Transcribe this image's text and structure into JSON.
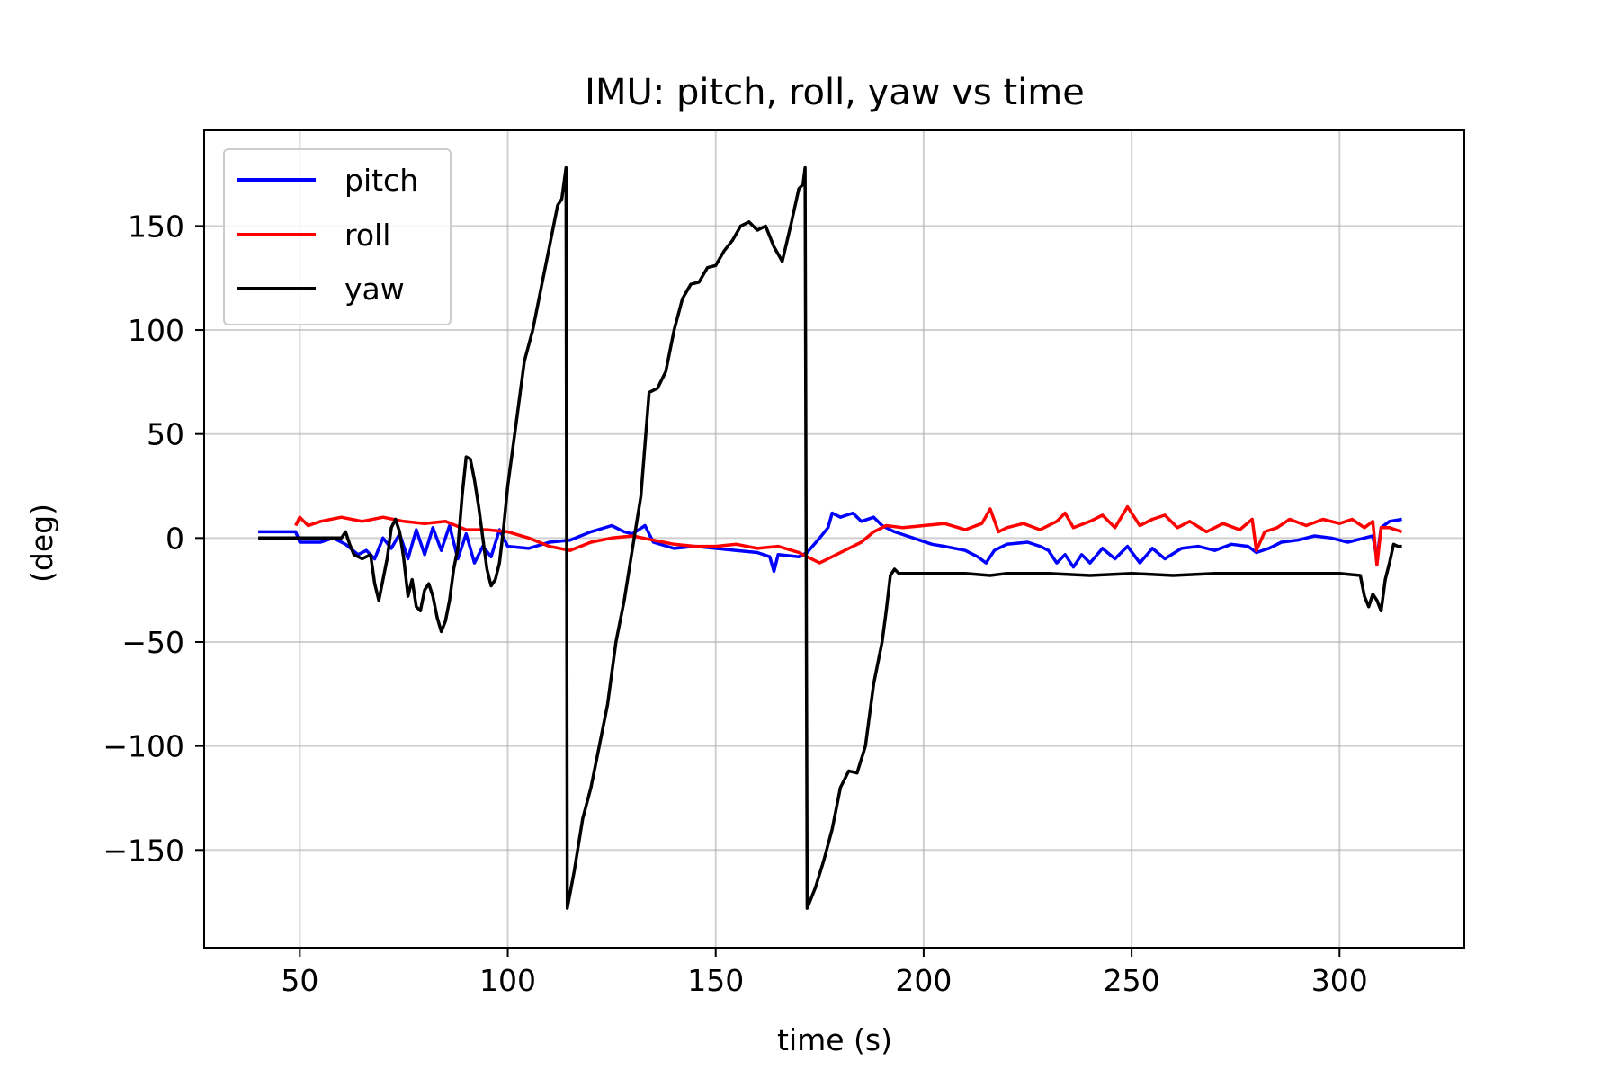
{
  "chart_data": {
    "type": "line",
    "title": "IMU: pitch, roll, yaw vs time",
    "xlabel": "time (s)",
    "ylabel": "(deg)",
    "xlim": [
      27,
      330
    ],
    "ylim": [
      -197,
      196
    ],
    "xticks": [
      50,
      100,
      150,
      200,
      250,
      300
    ],
    "xtick_labels": [
      "50",
      "100",
      "150",
      "200",
      "250",
      "300"
    ],
    "yticks": [
      -150,
      -100,
      -50,
      0,
      50,
      100,
      150
    ],
    "ytick_labels": [
      "−150",
      "−100",
      "−50",
      "0",
      "50",
      "100",
      "150"
    ],
    "grid": true,
    "legend_position": "upper-left",
    "series": [
      {
        "name": "pitch",
        "color": "#0000ff",
        "points": [
          [
            40,
            3
          ],
          [
            49,
            3
          ],
          [
            50,
            -2
          ],
          [
            55,
            -2
          ],
          [
            58,
            0
          ],
          [
            61,
            -3
          ],
          [
            64,
            -8
          ],
          [
            66,
            -6
          ],
          [
            68,
            -10
          ],
          [
            70,
            0
          ],
          [
            72,
            -5
          ],
          [
            74,
            2
          ],
          [
            76,
            -10
          ],
          [
            78,
            4
          ],
          [
            80,
            -8
          ],
          [
            82,
            5
          ],
          [
            84,
            -6
          ],
          [
            86,
            6
          ],
          [
            88,
            -10
          ],
          [
            90,
            2
          ],
          [
            92,
            -12
          ],
          [
            94,
            -4
          ],
          [
            96,
            -9
          ],
          [
            98,
            4
          ],
          [
            100,
            -4
          ],
          [
            105,
            -5
          ],
          [
            110,
            -2
          ],
          [
            115,
            -1
          ],
          [
            120,
            3
          ],
          [
            125,
            6
          ],
          [
            128,
            3
          ],
          [
            130,
            2
          ],
          [
            133,
            6
          ],
          [
            135,
            -2
          ],
          [
            140,
            -5
          ],
          [
            145,
            -4
          ],
          [
            150,
            -5
          ],
          [
            155,
            -6
          ],
          [
            160,
            -7
          ],
          [
            163,
            -9
          ],
          [
            164,
            -16
          ],
          [
            165,
            -8
          ],
          [
            170,
            -9
          ],
          [
            172,
            -7
          ],
          [
            175,
            0
          ],
          [
            177,
            5
          ],
          [
            178,
            12
          ],
          [
            180,
            10
          ],
          [
            183,
            12
          ],
          [
            185,
            8
          ],
          [
            188,
            10
          ],
          [
            190,
            6
          ],
          [
            193,
            3
          ],
          [
            196,
            1
          ],
          [
            199,
            -1
          ],
          [
            202,
            -3
          ],
          [
            205,
            -4
          ],
          [
            210,
            -6
          ],
          [
            213,
            -9
          ],
          [
            215,
            -12
          ],
          [
            217,
            -6
          ],
          [
            220,
            -3
          ],
          [
            225,
            -2
          ],
          [
            228,
            -4
          ],
          [
            230,
            -6
          ],
          [
            232,
            -12
          ],
          [
            234,
            -8
          ],
          [
            236,
            -14
          ],
          [
            238,
            -8
          ],
          [
            240,
            -12
          ],
          [
            243,
            -5
          ],
          [
            246,
            -10
          ],
          [
            249,
            -4
          ],
          [
            252,
            -12
          ],
          [
            255,
            -5
          ],
          [
            258,
            -10
          ],
          [
            262,
            -5
          ],
          [
            266,
            -4
          ],
          [
            270,
            -6
          ],
          [
            274,
            -3
          ],
          [
            278,
            -4
          ],
          [
            280,
            -7
          ],
          [
            283,
            -5
          ],
          [
            286,
            -2
          ],
          [
            290,
            -1
          ],
          [
            294,
            1
          ],
          [
            298,
            0
          ],
          [
            302,
            -2
          ],
          [
            306,
            0
          ],
          [
            308,
            1
          ],
          [
            309,
            -10
          ],
          [
            310,
            5
          ],
          [
            312,
            8
          ],
          [
            315,
            9
          ]
        ]
      },
      {
        "name": "roll",
        "color": "#ff0000",
        "points": [
          [
            49,
            6
          ],
          [
            50,
            10
          ],
          [
            52,
            6
          ],
          [
            55,
            8
          ],
          [
            60,
            10
          ],
          [
            65,
            8
          ],
          [
            70,
            10
          ],
          [
            75,
            8
          ],
          [
            80,
            7
          ],
          [
            85,
            8
          ],
          [
            90,
            4
          ],
          [
            95,
            4
          ],
          [
            100,
            3
          ],
          [
            105,
            0
          ],
          [
            110,
            -4
          ],
          [
            115,
            -6
          ],
          [
            120,
            -2
          ],
          [
            125,
            0
          ],
          [
            130,
            1
          ],
          [
            135,
            -1
          ],
          [
            140,
            -3
          ],
          [
            145,
            -4
          ],
          [
            150,
            -4
          ],
          [
            155,
            -3
          ],
          [
            160,
            -5
          ],
          [
            165,
            -4
          ],
          [
            170,
            -7
          ],
          [
            172,
            -9
          ],
          [
            175,
            -12
          ],
          [
            178,
            -9
          ],
          [
            182,
            -5
          ],
          [
            185,
            -2
          ],
          [
            188,
            3
          ],
          [
            191,
            6
          ],
          [
            195,
            5
          ],
          [
            200,
            6
          ],
          [
            205,
            7
          ],
          [
            210,
            4
          ],
          [
            214,
            7
          ],
          [
            216,
            14
          ],
          [
            218,
            3
          ],
          [
            220,
            5
          ],
          [
            224,
            7
          ],
          [
            228,
            4
          ],
          [
            232,
            8
          ],
          [
            234,
            12
          ],
          [
            236,
            5
          ],
          [
            240,
            8
          ],
          [
            243,
            11
          ],
          [
            246,
            5
          ],
          [
            249,
            15
          ],
          [
            250,
            12
          ],
          [
            252,
            6
          ],
          [
            255,
            9
          ],
          [
            258,
            11
          ],
          [
            261,
            5
          ],
          [
            264,
            8
          ],
          [
            268,
            3
          ],
          [
            272,
            7
          ],
          [
            276,
            4
          ],
          [
            279,
            9
          ],
          [
            280,
            -6
          ],
          [
            282,
            3
          ],
          [
            285,
            5
          ],
          [
            288,
            9
          ],
          [
            292,
            6
          ],
          [
            296,
            9
          ],
          [
            300,
            7
          ],
          [
            303,
            9
          ],
          [
            306,
            5
          ],
          [
            308,
            8
          ],
          [
            309,
            -13
          ],
          [
            310,
            5
          ],
          [
            312,
            5
          ],
          [
            315,
            3
          ]
        ]
      },
      {
        "name": "yaw",
        "color": "#000000",
        "points": [
          [
            40,
            0
          ],
          [
            58,
            0
          ],
          [
            60,
            0
          ],
          [
            61,
            3
          ],
          [
            62,
            -3
          ],
          [
            63,
            -8
          ],
          [
            65,
            -10
          ],
          [
            67,
            -8
          ],
          [
            68,
            -22
          ],
          [
            69,
            -30
          ],
          [
            70,
            -20
          ],
          [
            71,
            -10
          ],
          [
            72,
            5
          ],
          [
            73,
            9
          ],
          [
            74,
            3
          ],
          [
            75,
            -10
          ],
          [
            76,
            -28
          ],
          [
            77,
            -20
          ],
          [
            78,
            -33
          ],
          [
            79,
            -35
          ],
          [
            80,
            -25
          ],
          [
            81,
            -22
          ],
          [
            82,
            -28
          ],
          [
            83,
            -38
          ],
          [
            84,
            -45
          ],
          [
            85,
            -40
          ],
          [
            86,
            -30
          ],
          [
            87,
            -15
          ],
          [
            88,
            -5
          ],
          [
            89,
            20
          ],
          [
            90,
            39
          ],
          [
            91,
            38
          ],
          [
            92,
            28
          ],
          [
            93,
            15
          ],
          [
            94,
            0
          ],
          [
            95,
            -15
          ],
          [
            96,
            -23
          ],
          [
            97,
            -20
          ],
          [
            98,
            -12
          ],
          [
            99,
            5
          ],
          [
            100,
            25
          ],
          [
            102,
            55
          ],
          [
            104,
            85
          ],
          [
            106,
            100
          ],
          [
            108,
            120
          ],
          [
            110,
            140
          ],
          [
            112,
            160
          ],
          [
            113,
            163
          ],
          [
            114,
            178
          ],
          [
            114.3,
            -178
          ],
          [
            116,
            -160
          ],
          [
            118,
            -135
          ],
          [
            120,
            -120
          ],
          [
            122,
            -100
          ],
          [
            124,
            -80
          ],
          [
            126,
            -50
          ],
          [
            128,
            -30
          ],
          [
            130,
            -5
          ],
          [
            132,
            20
          ],
          [
            134,
            70
          ],
          [
            136,
            72
          ],
          [
            138,
            80
          ],
          [
            140,
            100
          ],
          [
            142,
            115
          ],
          [
            144,
            122
          ],
          [
            146,
            123
          ],
          [
            148,
            130
          ],
          [
            150,
            131
          ],
          [
            152,
            138
          ],
          [
            154,
            143
          ],
          [
            156,
            150
          ],
          [
            158,
            152
          ],
          [
            160,
            148
          ],
          [
            162,
            150
          ],
          [
            164,
            140
          ],
          [
            166,
            133
          ],
          [
            168,
            150
          ],
          [
            170,
            168
          ],
          [
            171,
            170
          ],
          [
            171.5,
            178
          ],
          [
            172,
            -178
          ],
          [
            174,
            -168
          ],
          [
            176,
            -155
          ],
          [
            178,
            -140
          ],
          [
            180,
            -120
          ],
          [
            182,
            -112
          ],
          [
            184,
            -113
          ],
          [
            186,
            -100
          ],
          [
            188,
            -70
          ],
          [
            190,
            -50
          ],
          [
            191,
            -35
          ],
          [
            192,
            -18
          ],
          [
            193,
            -15
          ],
          [
            194,
            -17
          ],
          [
            200,
            -17
          ],
          [
            210,
            -17
          ],
          [
            216,
            -18
          ],
          [
            220,
            -17
          ],
          [
            230,
            -17
          ],
          [
            240,
            -18
          ],
          [
            250,
            -17
          ],
          [
            260,
            -18
          ],
          [
            270,
            -17
          ],
          [
            280,
            -17
          ],
          [
            290,
            -17
          ],
          [
            300,
            -17
          ],
          [
            305,
            -18
          ],
          [
            306,
            -28
          ],
          [
            307,
            -33
          ],
          [
            308,
            -27
          ],
          [
            309,
            -30
          ],
          [
            310,
            -35
          ],
          [
            311,
            -20
          ],
          [
            312,
            -12
          ],
          [
            313,
            -3
          ],
          [
            314,
            -4
          ],
          [
            315,
            -4
          ]
        ]
      }
    ]
  }
}
